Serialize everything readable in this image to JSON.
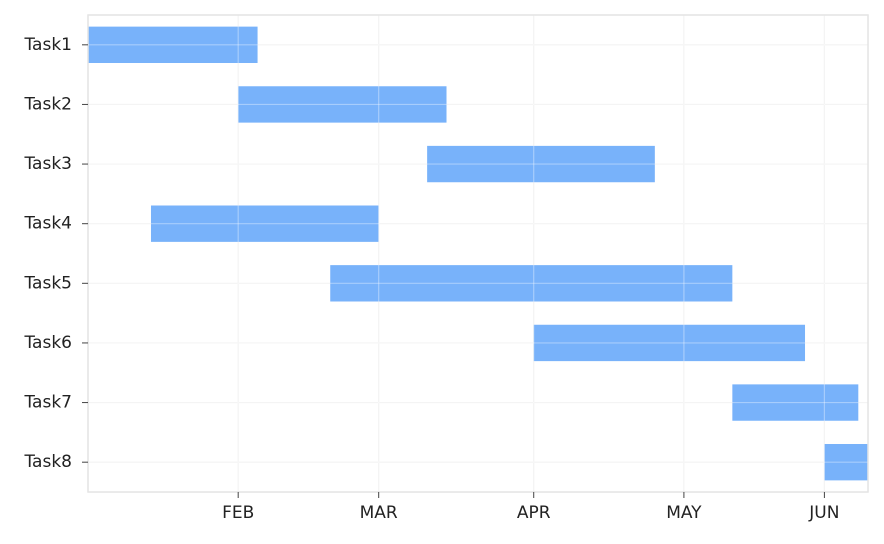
{
  "chart_data": {
    "type": "gantt",
    "title": "",
    "xlabel": "",
    "ylabel": "",
    "x_axis": {
      "type": "date",
      "range": [
        "2024-01-01",
        "2024-06-10"
      ],
      "ticks": [
        {
          "date": "2024-02-01",
          "label": "FEB"
        },
        {
          "date": "2024-03-01",
          "label": "MAR"
        },
        {
          "date": "2024-04-02",
          "label": "APR"
        },
        {
          "date": "2024-05-03",
          "label": "MAY"
        },
        {
          "date": "2024-06-01",
          "label": "JUN"
        }
      ]
    },
    "categories": [
      "Task1",
      "Task2",
      "Task3",
      "Task4",
      "Task5",
      "Task6",
      "Task7",
      "Task8"
    ],
    "tasks": [
      {
        "name": "Task1",
        "start": "2024-01-01",
        "end": "2024-02-05"
      },
      {
        "name": "Task2",
        "start": "2024-02-01",
        "end": "2024-03-15"
      },
      {
        "name": "Task3",
        "start": "2024-03-11",
        "end": "2024-04-27"
      },
      {
        "name": "Task4",
        "start": "2024-01-14",
        "end": "2024-03-01"
      },
      {
        "name": "Task5",
        "start": "2024-02-20",
        "end": "2024-05-13"
      },
      {
        "name": "Task6",
        "start": "2024-04-02",
        "end": "2024-05-28"
      },
      {
        "name": "Task7",
        "start": "2024-05-13",
        "end": "2024-06-08"
      },
      {
        "name": "Task8",
        "start": "2024-06-01",
        "end": "2024-06-10"
      }
    ],
    "bar_color": "#78b2fa",
    "grid": true,
    "legend": "none"
  }
}
